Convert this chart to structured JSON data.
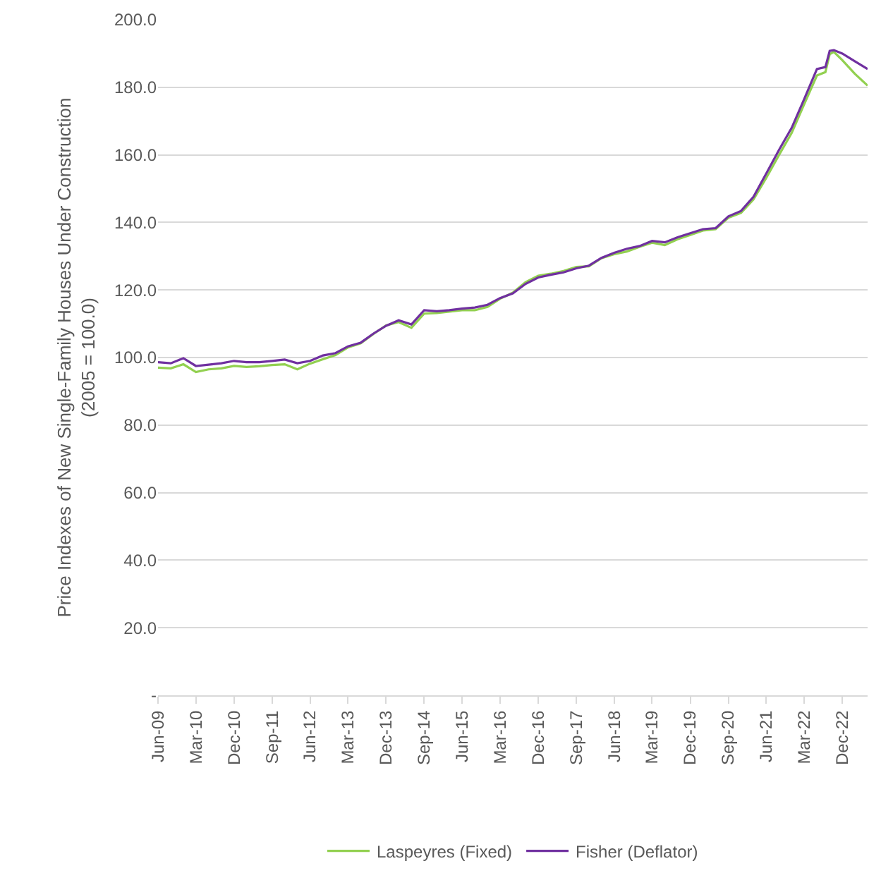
{
  "chart_data": {
    "type": "line",
    "ylabel": "Price Indexes of New Single-Family Houses Under Construction\n(2005 = 100.0)",
    "x": [
      "2009-06",
      "2009-09",
      "2009-12",
      "2010-03",
      "2010-06",
      "2010-09",
      "2010-12",
      "2011-03",
      "2011-06",
      "2011-09",
      "2011-12",
      "2012-03",
      "2012-06",
      "2012-09",
      "2012-12",
      "2013-03",
      "2013-06",
      "2013-09",
      "2013-12",
      "2014-03",
      "2014-06",
      "2014-09",
      "2014-12",
      "2015-03",
      "2015-06",
      "2015-09",
      "2015-12",
      "2016-03",
      "2016-06",
      "2016-09",
      "2016-12",
      "2017-03",
      "2017-06",
      "2017-09",
      "2017-12",
      "2018-03",
      "2018-06",
      "2018-09",
      "2018-12",
      "2019-03",
      "2019-06",
      "2019-09",
      "2019-12",
      "2020-03",
      "2020-06",
      "2020-09",
      "2020-12",
      "2021-03",
      "2021-06",
      "2021-09",
      "2021-12",
      "2022-03",
      "2022-06",
      "2022-08",
      "2022-09",
      "2022-10",
      "2022-12",
      "2023-03",
      "2023-06"
    ],
    "series": [
      {
        "name": "Laspeyres (Fixed)",
        "color": "#92d050",
        "values": [
          97,
          96.8,
          98,
          95.7,
          96.5,
          96.8,
          97.5,
          97.2,
          97.4,
          97.8,
          98,
          96.5,
          98.2,
          99.5,
          100.7,
          103,
          104.2,
          107,
          109.5,
          110.5,
          108.8,
          113,
          113.2,
          113.6,
          114,
          114,
          115,
          117.4,
          119.2,
          122.3,
          124.2,
          124.8,
          125.6,
          126.8,
          127,
          129.4,
          130.6,
          131.4,
          132.8,
          134,
          133.3,
          135,
          136.3,
          137.6,
          138,
          141.4,
          142.8,
          146.8,
          153.2,
          160,
          166.5,
          175,
          183.5,
          184.5,
          189.8,
          190.5,
          188,
          184,
          180.5
        ]
      },
      {
        "name": "Fisher (Deflator)",
        "color": "#7030a0",
        "values": [
          98.6,
          98.3,
          99.8,
          97.5,
          97.9,
          98.3,
          99,
          98.6,
          98.6,
          99,
          99.4,
          98.3,
          99,
          100.6,
          101.3,
          103.3,
          104.4,
          107.1,
          109.4,
          111,
          109.8,
          114,
          113.7,
          114,
          114.5,
          114.8,
          115.6,
          117.6,
          119,
          121.8,
          123.7,
          124.5,
          125.2,
          126.4,
          127.2,
          129.5,
          131,
          132.2,
          133,
          134.5,
          134.1,
          135.6,
          136.8,
          138,
          138.3,
          141.8,
          143.4,
          147.6,
          154.5,
          161.5,
          168,
          176.5,
          185.4,
          186,
          190.8,
          191,
          190,
          187.7,
          185.4
        ]
      }
    ],
    "xlim": [
      "2009-06",
      "2023-06"
    ],
    "xticks": [
      {
        "value": "2009-06",
        "label": "Jun-09"
      },
      {
        "value": "2010-03",
        "label": "Mar-10"
      },
      {
        "value": "2010-12",
        "label": "Dec-10"
      },
      {
        "value": "2011-09",
        "label": "Sep-11"
      },
      {
        "value": "2012-06",
        "label": "Jun-12"
      },
      {
        "value": "2013-03",
        "label": "Mar-13"
      },
      {
        "value": "2013-12",
        "label": "Dec-13"
      },
      {
        "value": "2014-09",
        "label": "Sep-14"
      },
      {
        "value": "2015-06",
        "label": "Jun-15"
      },
      {
        "value": "2016-03",
        "label": "Mar-16"
      },
      {
        "value": "2016-12",
        "label": "Dec-16"
      },
      {
        "value": "2017-09",
        "label": "Sep-17"
      },
      {
        "value": "2018-06",
        "label": "Jun-18"
      },
      {
        "value": "2019-03",
        "label": "Mar-19"
      },
      {
        "value": "2019-12",
        "label": "Dec-19"
      },
      {
        "value": "2020-09",
        "label": "Sep-20"
      },
      {
        "value": "2021-06",
        "label": "Jun-21"
      },
      {
        "value": "2022-03",
        "label": "Mar-22"
      },
      {
        "value": "2022-12",
        "label": "Dec-22"
      }
    ],
    "ylim": [
      0,
      200
    ],
    "yticks": [
      {
        "value": 0,
        "label": "-"
      },
      {
        "value": 20,
        "label": "20.0"
      },
      {
        "value": 40,
        "label": "40.0"
      },
      {
        "value": 60,
        "label": "60.0"
      },
      {
        "value": 80,
        "label": "80.0"
      },
      {
        "value": 100,
        "label": "100.0"
      },
      {
        "value": 120,
        "label": "120.0"
      },
      {
        "value": 140,
        "label": "140.0"
      },
      {
        "value": 160,
        "label": "160.0"
      },
      {
        "value": 180,
        "label": "180.0"
      },
      {
        "value": 200,
        "label": "200.0"
      }
    ],
    "grid": "y",
    "legend": "bottom",
    "marker": "none",
    "line_style": "solid"
  }
}
